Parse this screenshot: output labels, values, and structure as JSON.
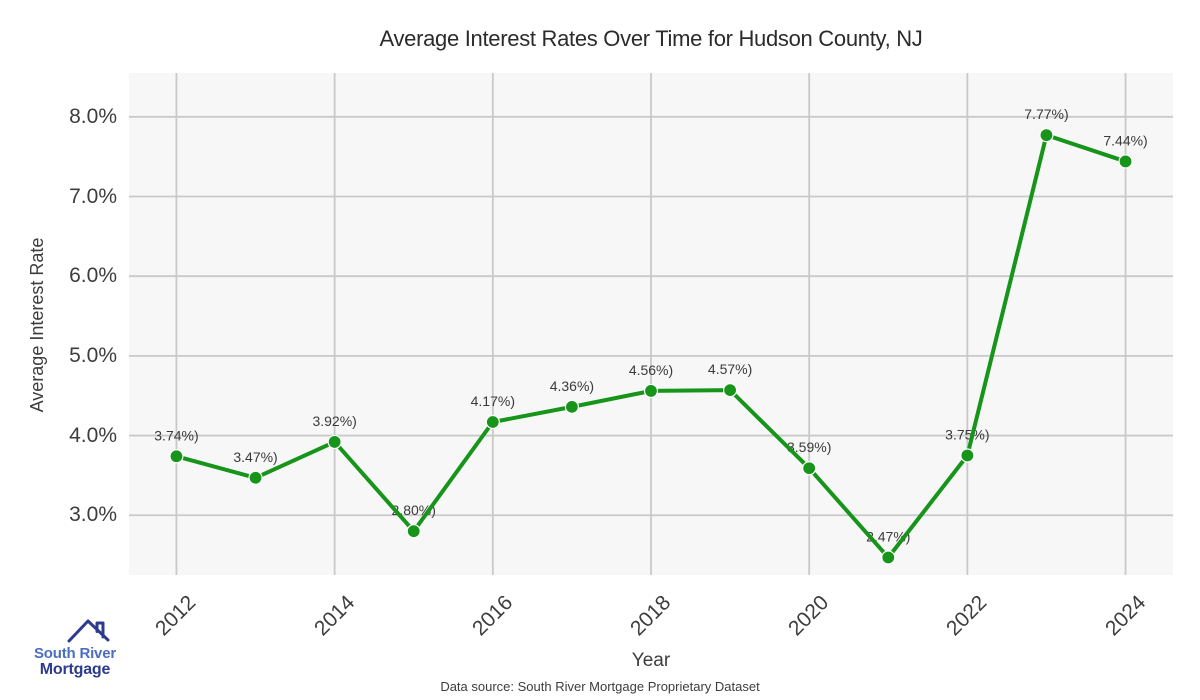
{
  "title": "Average Interest Rates Over Time for Hudson County, NJ",
  "footer": {
    "source_note": "Data source: South River Mortgage Proprietary Dataset"
  },
  "logo": {
    "icon": "house-roof-icon",
    "name1": "South River",
    "name2": "Mortgage",
    "color_primary": "#4a6fbe",
    "color_secondary": "#2d3b8e"
  },
  "chart_data": {
    "type": "line",
    "title": "Average Interest Rates Over Time for Hudson County, NJ",
    "xlabel": "Year",
    "ylabel": "Average Interest Rate",
    "x": [
      2012,
      2013,
      2014,
      2015,
      2016,
      2017,
      2018,
      2019,
      2020,
      2021,
      2022,
      2023,
      2024
    ],
    "series": [
      {
        "name": "Average Interest Rate (%)",
        "values": [
          3.74,
          3.47,
          3.92,
          2.8,
          4.17,
          4.36,
          4.56,
          4.57,
          3.59,
          2.47,
          3.75,
          7.77,
          7.44
        ]
      }
    ],
    "point_labels": [
      "3.74%)",
      "3.47%)",
      "3.92%)",
      "2.80%)",
      "4.17%)",
      "4.36%)",
      "4.56%)",
      "4.57%)",
      "3.59%)",
      "2.47%)",
      "3.75%)",
      "7.77%)",
      "7.44%)"
    ],
    "xticks": [
      2012,
      2014,
      2016,
      2018,
      2020,
      2022,
      2024
    ],
    "xtick_labels": [
      "2012",
      "2014",
      "2016",
      "2018",
      "2020",
      "2022",
      "2024"
    ],
    "yticks": [
      3,
      4,
      5,
      6,
      7,
      8
    ],
    "ytick_labels": [
      "3.0%",
      "4.0%",
      "5.0%",
      "6.0%",
      "7.0%",
      "8.0%"
    ],
    "xlim": [
      2011.4,
      2024.6
    ],
    "ylim": [
      2.25,
      8.55
    ],
    "grid": true,
    "legend_position": "none",
    "line_color": "#17941a",
    "marker_color": "#17941a",
    "marker_edge_color": "#ffffff",
    "panel_bg": "#f7f7f7",
    "grid_color": "#c9c9c9",
    "label_text_color": "#3a3a3a"
  }
}
